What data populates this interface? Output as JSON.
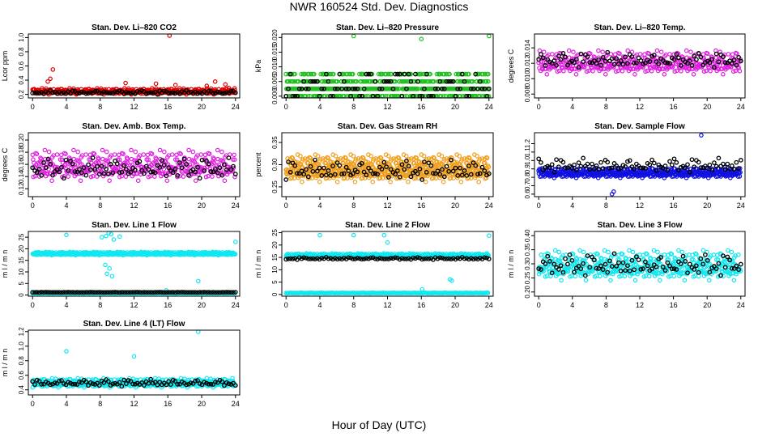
{
  "figure": {
    "title": "NWR  160524  Std. Dev. Diagnostics",
    "xlabel": "Hour of Day (UTC)"
  },
  "chart_data": [
    {
      "type": "scatter",
      "title": "Stan. Dev. Li–820 CO2",
      "ylabel": "Lcor ppm",
      "xticks": [
        0,
        4,
        8,
        12,
        16,
        20,
        24
      ],
      "yticks": [
        "0.2",
        "0.4",
        "0.6",
        "0.8",
        "1.0"
      ],
      "ytick_values": [
        0.2,
        0.4,
        0.6,
        0.8,
        1.0
      ],
      "xlim": [
        -0.5,
        24.5
      ],
      "ylim": [
        0.15,
        1.05
      ],
      "color": "#e00000",
      "color_count": 450,
      "main_mean": 0.245,
      "main_sd": 0.03,
      "outliers": [
        [
          16.2,
          1.04
        ],
        [
          2.4,
          0.55
        ],
        [
          2.1,
          0.42
        ],
        [
          1.8,
          0.38
        ],
        [
          21.6,
          0.38
        ],
        [
          20.6,
          0.32
        ],
        [
          22.8,
          0.34
        ],
        [
          11.0,
          0.36
        ],
        [
          14.6,
          0.35
        ],
        [
          16.9,
          0.33
        ],
        [
          23.2,
          0.29
        ]
      ],
      "black": {
        "mean": 0.23,
        "sd": 0.02,
        "count": 92
      }
    },
    {
      "type": "scatter",
      "title": "Stan. Dev. Li–820 Pressure",
      "ylabel": "kPa",
      "xticks": [
        0,
        4,
        8,
        12,
        16,
        20,
        24
      ],
      "yticks": [
        "0.000",
        "0.005",
        "0.010",
        "0.015",
        "0.020"
      ],
      "ytick_values": [
        0.0,
        0.005,
        0.01,
        0.015,
        0.02
      ],
      "xlim": [
        -0.5,
        24.5
      ],
      "ylim": [
        -0.0006,
        0.0212
      ],
      "color": "#20c020",
      "quantized": [
        0.0,
        0.0025,
        0.005,
        0.0075
      ],
      "color_count": 640,
      "outliers": [
        [
          8.0,
          0.0205
        ],
        [
          16.0,
          0.0195
        ],
        [
          24.0,
          0.0205
        ]
      ],
      "black": {
        "quantized": [
          0.0,
          0.0025,
          0.005,
          0.0075
        ],
        "count": 92
      }
    },
    {
      "type": "scatter",
      "title": "Stan. Dev. Li–820 Temp.",
      "ylabel": "degrees C",
      "xticks": [
        0,
        4,
        8,
        12,
        16,
        20,
        24
      ],
      "yticks": [
        "0.008",
        "0.010",
        "0.012",
        "0.014"
      ],
      "ytick_values": [
        0.008,
        0.01,
        0.012,
        0.014
      ],
      "xlim": [
        -0.5,
        24.5
      ],
      "ylim": [
        0.0075,
        0.0158
      ],
      "color": "#e020e0",
      "color_count": 420,
      "main_mean": 0.0122,
      "main_sd": 0.0011,
      "outliers": [],
      "black": {
        "mean": 0.0125,
        "sd": 0.0007,
        "count": 92
      }
    },
    {
      "type": "scatter",
      "title": "Stan. Dev. Amb. Box Temp.",
      "ylabel": "degrees C",
      "xticks": [
        0,
        4,
        8,
        12,
        16,
        20,
        24
      ],
      "yticks": [
        "0.12",
        "0.14",
        "0.16",
        "0.18",
        "0.20"
      ],
      "ytick_values": [
        0.12,
        0.14,
        0.16,
        0.18,
        0.2
      ],
      "xlim": [
        -0.5,
        24.5
      ],
      "ylim": [
        0.107,
        0.212
      ],
      "color": "#e020e0",
      "color_count": 430,
      "main_mean": 0.16,
      "main_sd": 0.018,
      "outliers": [],
      "black": {
        "mean": 0.155,
        "sd": 0.012,
        "count": 92
      }
    },
    {
      "type": "scatter",
      "title": "Stan. Dev. Gas Stream RH",
      "ylabel": "percent",
      "xticks": [
        0,
        4,
        8,
        12,
        16,
        20,
        24
      ],
      "yticks": [
        "0.25",
        "0.30",
        "0.35"
      ],
      "ytick_values": [
        0.25,
        0.3,
        0.35
      ],
      "xlim": [
        -0.5,
        24.5
      ],
      "ylim": [
        0.228,
        0.372
      ],
      "color": "#f0a020",
      "color_count": 700,
      "main_mean": 0.294,
      "main_sd": 0.022,
      "outliers": [],
      "black": {
        "mean": 0.29,
        "sd": 0.016,
        "count": 92
      }
    },
    {
      "type": "scatter",
      "title": "Stan. Dev. Sample Flow",
      "ylabel": "",
      "xticks": [
        0,
        4,
        8,
        12,
        16,
        20,
        24
      ],
      "yticks": [
        "0.6",
        "0.7",
        "0.8",
        "0.9",
        "1.0",
        "1.1",
        "1.2"
      ],
      "ytick_values": [
        0.6,
        0.7,
        0.8,
        0.9,
        1.0,
        1.1,
        1.2
      ],
      "xlim": [
        -0.5,
        24.5
      ],
      "ylim": [
        0.57,
        1.33
      ],
      "color": "#1010e0",
      "color_count": 560,
      "main_mean": 0.86,
      "main_sd": 0.045,
      "outliers": [
        [
          8.7,
          0.6
        ],
        [
          8.9,
          0.63
        ],
        [
          19.3,
          1.3
        ]
      ],
      "black": {
        "mean": 0.95,
        "sd": 0.06,
        "count": 92
      }
    },
    {
      "type": "scatter",
      "title": "Stan. Dev. Line 1 Flow",
      "ylabel": "m l / m n",
      "xticks": [
        0,
        4,
        8,
        12,
        16,
        20,
        24
      ],
      "yticks": [
        "0",
        "5",
        "10",
        "15",
        "20",
        "25"
      ],
      "ytick_values": [
        0,
        5,
        10,
        15,
        20,
        25
      ],
      "xlim": [
        -0.5,
        24.5
      ],
      "ylim": [
        -0.5,
        27.5
      ],
      "color": "#10e8f0",
      "color_count": 520,
      "main_mean": 18.0,
      "main_sd": 0.5,
      "low_band": {
        "mean": 0.8,
        "sd": 0.08,
        "count": 200
      },
      "outliers": [
        [
          4.0,
          26.0
        ],
        [
          9.0,
          27.0
        ],
        [
          9.3,
          26.3
        ],
        [
          8.7,
          25.5
        ],
        [
          8.2,
          25.0
        ],
        [
          9.6,
          24.0
        ],
        [
          10.3,
          25.3
        ],
        [
          8.6,
          13.0
        ],
        [
          9.1,
          11.5
        ],
        [
          8.8,
          9.2
        ],
        [
          9.4,
          8.1
        ],
        [
          15.8,
          2.0
        ],
        [
          19.6,
          6.0
        ],
        [
          24.0,
          23.0
        ]
      ],
      "black": {
        "mean": 1.2,
        "sd": 0.05,
        "count": 92
      }
    },
    {
      "type": "scatter",
      "title": "Stan. Dev. Line 2 Flow",
      "ylabel": "m l / m n",
      "xticks": [
        0,
        4,
        8,
        12,
        16,
        20,
        24
      ],
      "yticks": [
        "0",
        "5",
        "10",
        "15",
        "20",
        "25"
      ],
      "ytick_values": [
        0,
        5,
        10,
        15,
        20,
        25
      ],
      "xlim": [
        -0.5,
        24.5
      ],
      "ylim": [
        -0.7,
        25.5
      ],
      "color": "#10e8f0",
      "color_count": 480,
      "main_mean": 15.9,
      "main_sd": 0.55,
      "low_band": {
        "mean": 0.6,
        "sd": 0.08,
        "count": 200
      },
      "outliers": [
        [
          4.0,
          24.0
        ],
        [
          8.0,
          24.0
        ],
        [
          11.6,
          24.0
        ],
        [
          12.0,
          21.0
        ],
        [
          16.1,
          2.1
        ],
        [
          19.4,
          6.1
        ],
        [
          19.6,
          5.6
        ],
        [
          24.0,
          23.8
        ]
      ],
      "black": {
        "mean": 14.6,
        "sd": 0.35,
        "count": 92
      }
    },
    {
      "type": "scatter",
      "title": "Stan. Dev. Line 3 Flow",
      "ylabel": "m l / m n",
      "xticks": [
        0,
        4,
        8,
        12,
        16,
        20,
        24
      ],
      "yticks": [
        "0.20",
        "0.25",
        "0.30",
        "0.35",
        "0.40"
      ],
      "ytick_values": [
        0.2,
        0.25,
        0.3,
        0.35,
        0.4
      ],
      "xlim": [
        -0.5,
        24.5
      ],
      "ylim": [
        0.185,
        0.415
      ],
      "color": "#10e8f0",
      "color_count": 500,
      "main_mean": 0.298,
      "main_sd": 0.038,
      "outliers": [],
      "black": {
        "mean": 0.3,
        "sd": 0.028,
        "count": 92
      }
    },
    {
      "type": "scatter",
      "title": "Stan. Dev. Line 4 (LT) Flow",
      "ylabel": "m l / m n",
      "xticks": [
        0,
        4,
        8,
        12,
        16,
        20,
        24
      ],
      "yticks": [
        "0.4",
        "0.6",
        "0.8",
        "1.0",
        "1.2"
      ],
      "ytick_values": [
        0.4,
        0.6,
        0.8,
        1.0,
        1.2
      ],
      "xlim": [
        -0.5,
        24.5
      ],
      "ylim": [
        0.33,
        1.22
      ],
      "color": "#10e8f0",
      "color_count": 480,
      "main_mean": 0.5,
      "main_sd": 0.045,
      "outliers": [
        [
          4.0,
          0.93
        ],
        [
          12.0,
          0.86
        ],
        [
          19.6,
          1.2
        ]
      ],
      "black": {
        "mean": 0.5,
        "sd": 0.035,
        "count": 92
      }
    }
  ]
}
